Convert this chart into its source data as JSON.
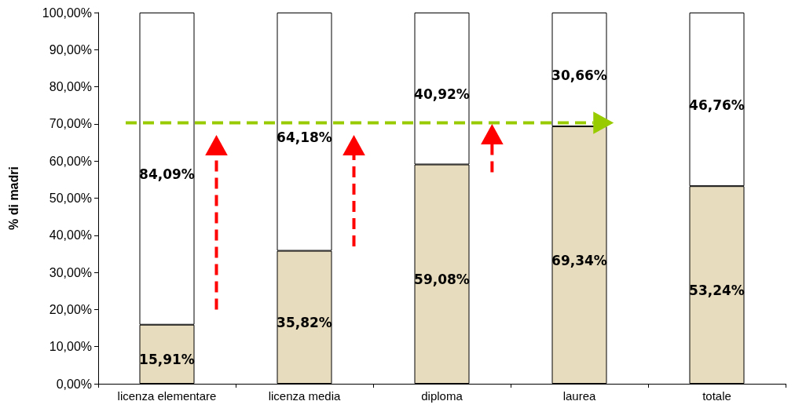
{
  "chart_data": {
    "type": "bar",
    "stacked": true,
    "ylabel": "% di madri",
    "categories": [
      "licenza elementare",
      "licenza media",
      "diploma",
      "laurea",
      "totale"
    ],
    "series": [
      {
        "color": "#e8dcbf",
        "values": [
          15.91,
          35.82,
          59.08,
          69.34,
          53.24
        ],
        "value_labels": [
          "15,91%",
          "35,82%",
          "59,08%",
          "69,34%",
          "53,24%"
        ]
      },
      {
        "color": "#ffffff",
        "values": [
          84.09,
          64.18,
          40.92,
          30.66,
          46.76
        ],
        "value_labels": [
          "84,09%",
          "64,18%",
          "40,92%",
          "30,66%",
          "46,76%"
        ]
      }
    ],
    "ylim": [
      0,
      100
    ],
    "yticks": [
      {
        "value": 0,
        "label": "0,00%"
      },
      {
        "value": 10,
        "label": "10,00%"
      },
      {
        "value": 20,
        "label": "20,00%"
      },
      {
        "value": 30,
        "label": "30,00%"
      },
      {
        "value": 40,
        "label": "40,00%"
      },
      {
        "value": 50,
        "label": "50,00%"
      },
      {
        "value": 60,
        "label": "60,00%"
      },
      {
        "value": 70,
        "label": "70,00%"
      },
      {
        "value": 80,
        "label": "80,00%"
      },
      {
        "value": 90,
        "label": "90,00%"
      },
      {
        "value": 100,
        "label": "100,00%"
      }
    ],
    "grid": false
  }
}
